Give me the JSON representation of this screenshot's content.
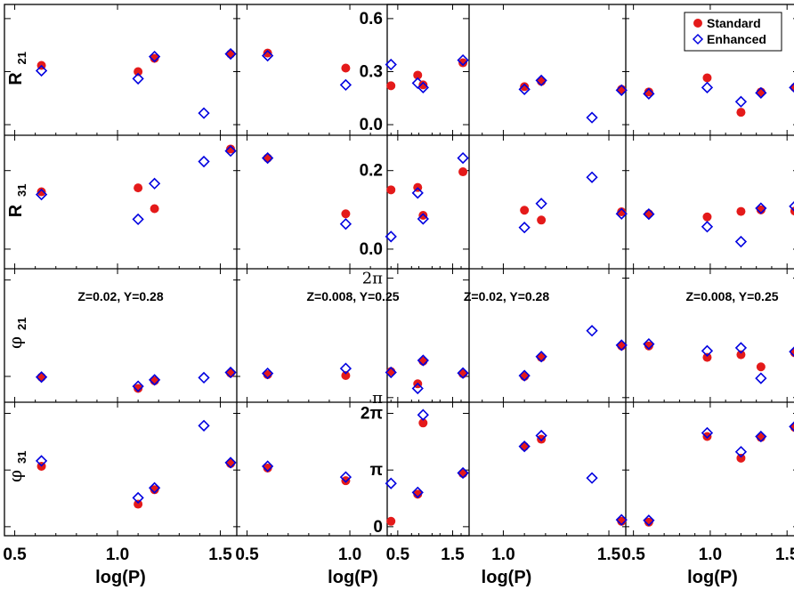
{
  "chart_data": {
    "type": "scatter",
    "x_label": "log(P)",
    "x_ticks": [
      "0.5",
      "1.0",
      "1.5"
    ],
    "xlim": [
      0.45,
      1.58
    ],
    "legend": {
      "position": "top-right",
      "entries": [
        {
          "name": "Standard",
          "marker": "filled-circle",
          "color": "#e41a1a"
        },
        {
          "name": "Enhanced",
          "marker": "open-diamond",
          "color": "#0000e0"
        }
      ]
    },
    "rows": [
      {
        "key": "R21",
        "label_main": "R",
        "label_sub": "21",
        "ylim": [
          -0.06,
          0.68
        ],
        "ticks": [
          {
            "v": 0.0,
            "t": "0.0"
          },
          {
            "v": 0.3,
            "t": "0.3"
          },
          {
            "v": 0.6,
            "t": "0.6"
          }
        ],
        "tick_style": [
          "num",
          "num"
        ]
      },
      {
        "key": "R31",
        "label_main": "R",
        "label_sub": "31",
        "ylim": [
          -0.05,
          0.29
        ],
        "ticks": [
          {
            "v": 0.0,
            "t": "0.0"
          },
          {
            "v": 0.2,
            "t": "0.2"
          }
        ],
        "tick_style": [
          "num",
          "num"
        ]
      },
      {
        "key": "phi21",
        "label_main": "φ",
        "label_sub": "21",
        "ylim": [
          2.3,
          6.65
        ],
        "ticks": [
          {
            "v": 3.1416,
            "t": "π"
          },
          {
            "v": 6.2832,
            "t": "2π"
          }
        ],
        "tick_style": [
          "serif",
          "serif"
        ],
        "ylim_by_group": [
          [
            2.3,
            6.65
          ],
          [
            3.02,
            6.53
          ]
        ],
        "ticks_by_group": [
          [
            {
              "v": 3.1416,
              "t": "π"
            },
            {
              "v": 6.2832,
              "t": "2π"
            }
          ],
          [
            {
              "v": 3.1416,
              "t": "π"
            },
            {
              "v": 6.2832,
              "t": "2π"
            }
          ]
        ]
      },
      {
        "key": "phi31",
        "label_main": "φ",
        "label_sub": "31",
        "ylim": [
          -0.5,
          6.9
        ],
        "ticks": [
          {
            "v": 0,
            "t": "0"
          },
          {
            "v": 3.1416,
            "t": "π"
          },
          {
            "v": 6.2832,
            "t": "2π"
          }
        ],
        "tick_style": [
          "num",
          "num"
        ]
      }
    ],
    "groups": [
      {
        "annotation_phi21": [
          "Z=0.02, Y=0.28",
          "Z=0.008, Y=0.25"
        ]
      },
      {
        "annotation_phi21": [
          "Z=0.02, Y=0.28",
          "Z=0.008, Y=0.25"
        ]
      }
    ],
    "panels": [
      {
        "group": 0,
        "col": 0,
        "series": {
          "R21": {
            "std": [
              [
                0.63,
                0.335
              ],
              [
                1.1,
                0.3
              ],
              [
                1.18,
                0.375
              ],
              [
                1.55,
                0.4
              ]
            ],
            "enh": [
              [
                0.63,
                0.305
              ],
              [
                1.1,
                0.26
              ],
              [
                1.18,
                0.385
              ],
              [
                1.42,
                0.065
              ],
              [
                1.55,
                0.4
              ]
            ]
          },
          "R31": {
            "std": [
              [
                0.63,
                0.146
              ],
              [
                1.1,
                0.156
              ],
              [
                1.18,
                0.103
              ],
              [
                1.55,
                0.255
              ]
            ],
            "enh": [
              [
                0.63,
                0.139
              ],
              [
                1.1,
                0.076
              ],
              [
                1.18,
                0.167
              ],
              [
                1.42,
                0.223
              ],
              [
                1.55,
                0.25
              ]
            ]
          },
          "phi21": {
            "std": [
              [
                0.63,
                3.12
              ],
              [
                1.1,
                2.75
              ],
              [
                1.18,
                3.0
              ],
              [
                1.55,
                3.25
              ]
            ],
            "enh": [
              [
                0.63,
                3.12
              ],
              [
                1.1,
                2.82
              ],
              [
                1.18,
                3.03
              ],
              [
                1.42,
                3.1
              ],
              [
                1.55,
                3.27
              ]
            ]
          },
          "phi31": {
            "std": [
              [
                0.63,
                3.35
              ],
              [
                1.1,
                1.25
              ],
              [
                1.18,
                2.05
              ],
              [
                1.55,
                3.5
              ]
            ],
            "enh": [
              [
                0.63,
                3.65
              ],
              [
                1.1,
                1.6
              ],
              [
                1.18,
                2.15
              ],
              [
                1.42,
                5.6
              ],
              [
                1.55,
                3.55
              ]
            ]
          }
        }
      },
      {
        "group": 0,
        "col": 1,
        "series": {
          "R21": {
            "std": [
              [
                0.6,
                0.405
              ],
              [
                0.98,
                0.32
              ],
              [
                1.2,
                0.22
              ],
              [
                1.33,
                0.28
              ],
              [
                1.55,
                0.35
              ]
            ],
            "enh": [
              [
                0.6,
                0.39
              ],
              [
                0.98,
                0.225
              ],
              [
                1.2,
                0.34
              ],
              [
                1.33,
                0.235
              ],
              [
                1.55,
                0.365
              ]
            ]
          },
          "R31": {
            "std": [
              [
                0.6,
                0.232
              ],
              [
                0.98,
                0.09
              ],
              [
                1.2,
                0.151
              ],
              [
                1.33,
                0.157
              ],
              [
                1.55,
                0.197
              ]
            ],
            "enh": [
              [
                0.6,
                0.232
              ],
              [
                0.98,
                0.064
              ],
              [
                1.2,
                0.032
              ],
              [
                1.33,
                0.143
              ],
              [
                1.55,
                0.232
              ]
            ]
          },
          "phi21": {
            "std": [
              [
                0.6,
                3.2
              ],
              [
                0.98,
                3.17
              ],
              [
                1.2,
                3.3
              ],
              [
                1.33,
                2.9
              ],
              [
                1.55,
                3.23
              ]
            ],
            "enh": [
              [
                0.6,
                3.24
              ],
              [
                0.98,
                3.4
              ],
              [
                1.2,
                3.27
              ],
              [
                1.33,
                2.75
              ],
              [
                1.55,
                3.25
              ]
            ]
          },
          "phi31": {
            "std": [
              [
                0.6,
                3.25
              ],
              [
                0.98,
                2.55
              ],
              [
                1.2,
                0.3
              ],
              [
                1.33,
                1.8
              ],
              [
                1.55,
                2.95
              ]
            ],
            "enh": [
              [
                0.6,
                3.35
              ],
              [
                0.98,
                2.75
              ],
              [
                1.2,
                2.4
              ],
              [
                1.33,
                1.9
              ],
              [
                1.55,
                2.98
              ]
            ]
          }
        }
      },
      {
        "group": 1,
        "col": 0,
        "series": {
          "R21": {
            "std": [
              [
                0.62,
                0.225
              ],
              [
                1.1,
                0.215
              ],
              [
                1.18,
                0.245
              ],
              [
                1.56,
                0.2
              ]
            ],
            "enh": [
              [
                0.62,
                0.21
              ],
              [
                1.1,
                0.2
              ],
              [
                1.18,
                0.25
              ],
              [
                1.42,
                0.04
              ],
              [
                1.56,
                0.195
              ]
            ]
          },
          "R31": {
            "std": [
              [
                0.62,
                0.086
              ],
              [
                1.1,
                0.099
              ],
              [
                1.18,
                0.074
              ],
              [
                1.56,
                0.095
              ]
            ],
            "enh": [
              [
                0.62,
                0.077
              ],
              [
                1.1,
                0.055
              ],
              [
                1.18,
                0.116
              ],
              [
                1.42,
                0.183
              ],
              [
                1.56,
                0.09
              ]
            ]
          },
          "phi21": {
            "std": [
              [
                0.62,
                4.1
              ],
              [
                1.1,
                3.7
              ],
              [
                1.18,
                4.2
              ],
              [
                1.56,
                4.5
              ]
            ],
            "enh": [
              [
                0.62,
                4.12
              ],
              [
                1.1,
                3.72
              ],
              [
                1.18,
                4.22
              ],
              [
                1.42,
                4.9
              ],
              [
                1.56,
                4.52
              ]
            ]
          },
          "phi31": {
            "std": [
              [
                0.62,
                5.75
              ],
              [
                1.1,
                4.45
              ],
              [
                1.18,
                4.85
              ],
              [
                1.56,
                0.3
              ]
            ],
            "enh": [
              [
                0.62,
                6.2
              ],
              [
                1.1,
                4.45
              ],
              [
                1.18,
                5.05
              ],
              [
                1.42,
                2.7
              ],
              [
                1.56,
                0.38
              ]
            ]
          }
        }
      },
      {
        "group": 1,
        "col": 1,
        "series": {
          "R21": {
            "std": [
              [
                0.6,
                0.185
              ],
              [
                0.98,
                0.265
              ],
              [
                1.2,
                0.07
              ],
              [
                1.33,
                0.185
              ],
              [
                1.55,
                0.21
              ]
            ],
            "enh": [
              [
                0.6,
                0.175
              ],
              [
                0.98,
                0.21
              ],
              [
                1.2,
                0.13
              ],
              [
                1.33,
                0.18
              ],
              [
                1.55,
                0.21
              ]
            ]
          },
          "R31": {
            "std": [
              [
                0.6,
                0.09
              ],
              [
                0.98,
                0.082
              ],
              [
                1.2,
                0.096
              ],
              [
                1.33,
                0.1
              ],
              [
                1.55,
                0.097
              ]
            ],
            "enh": [
              [
                0.6,
                0.089
              ],
              [
                0.98,
                0.057
              ],
              [
                1.2,
                0.019
              ],
              [
                1.33,
                0.104
              ],
              [
                1.55,
                0.109
              ]
            ]
          },
          "phi21": {
            "std": [
              [
                0.6,
                4.5
              ],
              [
                0.98,
                4.2
              ],
              [
                1.2,
                4.27
              ],
              [
                1.33,
                3.95
              ],
              [
                1.55,
                4.32
              ]
            ],
            "enh": [
              [
                0.6,
                4.55
              ],
              [
                0.98,
                4.37
              ],
              [
                1.2,
                4.45
              ],
              [
                1.33,
                3.65
              ],
              [
                1.55,
                4.35
              ]
            ]
          },
          "phi31": {
            "std": [
              [
                0.6,
                0.25
              ],
              [
                0.98,
                5.0
              ],
              [
                1.2,
                3.8
              ],
              [
                1.33,
                4.95
              ],
              [
                1.55,
                5.5
              ]
            ],
            "enh": [
              [
                0.6,
                0.35
              ],
              [
                0.98,
                5.2
              ],
              [
                1.2,
                4.15
              ],
              [
                1.33,
                5.0
              ],
              [
                1.55,
                5.55
              ]
            ]
          }
        }
      }
    ]
  }
}
